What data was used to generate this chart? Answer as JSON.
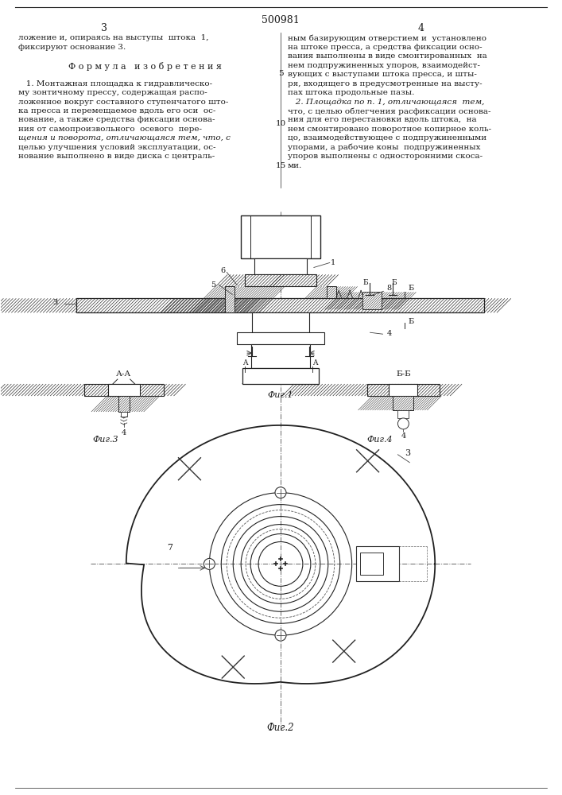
{
  "page_number_center": "500981",
  "col_left_num": "3",
  "col_right_num": "4",
  "bg_color": "#ffffff",
  "text_color": "#1a1a1a",
  "line_color": "#1a1a1a",
  "left_col_lines": [
    "ложение и, опираясь на выступы  штока  1,",
    "фиксируют основание 3.",
    "",
    "    Ф о р м у л а   и з о б р е т е н и я",
    "",
    "   1. Монтажная площадка к гидравлическо-",
    "му зонтичному прессу, содержащая распо-",
    "ложенное вокруг составного ступенчатого што-",
    "ка пресса и перемещаемое вдоль его оси  ос-",
    "нование, а также средства фиксации основа-",
    "ния от самопроизвольного  осевого  пере-",
    "щения и поворота, отличающаяся тем, что, с",
    "целью улучшения условий эксплуатации, ос-",
    "нование выполнено в виде диска с централь-"
  ],
  "right_col_lines": [
    "ным базирующим отверстием и  установлено",
    "на штоке пресса, а средства фиксации осно-",
    "вания выполнены в виде смонтированных  на",
    "нем подпружиненных упоров, взаимодейст-",
    "вующих с выступами штока пресса, и шты-",
    "ря, входящего в предусмотренные на высту-",
    "пах штока продольные пазы.",
    "   2. Площадка по п. 1, отличающаяся  тем,",
    "что, с целью облегчения расфиксации основа-",
    "ния для его перестановки вдоль штока,  на",
    "нем смонтировано поворотное копирное коль-",
    "цо, взаимодействующее с подпружиненными",
    "упорами, а рабочие коны  подпружиненных",
    "упоров выполнены с односторонними скоса-",
    "ми."
  ],
  "italic_keywords": [
    "отличающаяся"
  ]
}
